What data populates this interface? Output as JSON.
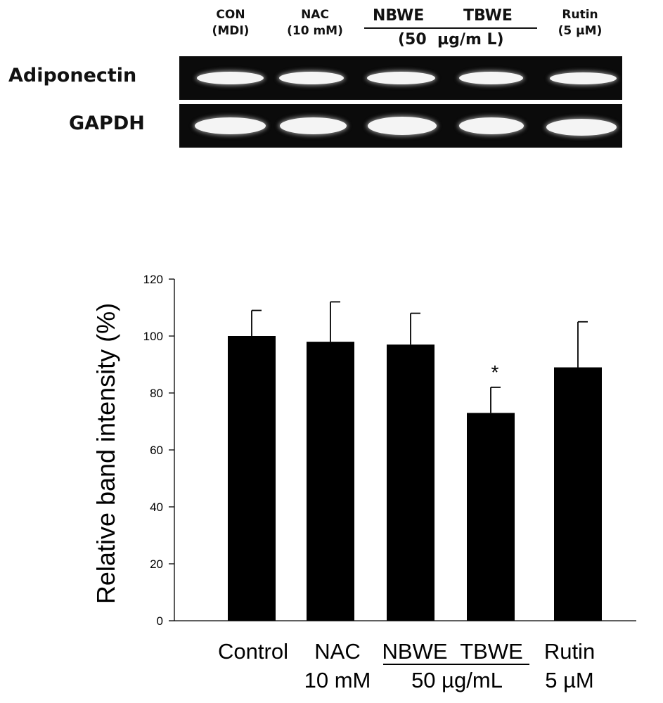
{
  "gel": {
    "lanes": [
      {
        "line1": "CON",
        "line2": "(MDI)"
      },
      {
        "line1": "NAC",
        "line2": "(10 mM)"
      },
      {
        "line1": "NBWE",
        "line2": ""
      },
      {
        "line1": "TBWE",
        "line2": ""
      },
      {
        "line1": "Rutin",
        "line2": "(5 µM)"
      }
    ],
    "group_label": "(50  µg/m L)",
    "rows": [
      "Adiponectin",
      "GAPDH"
    ]
  },
  "chart_data": {
    "type": "bar",
    "categories": [
      "Control",
      "NAC",
      "NBWE",
      "TBWE",
      "Rutin"
    ],
    "category_sublabels": [
      "",
      "10 mM",
      "",
      "",
      "5 µM"
    ],
    "group_sublabel": "50 µg/mL",
    "values": [
      100,
      98,
      97,
      73,
      89
    ],
    "errors": [
      9,
      14,
      11,
      9,
      16
    ],
    "significance": [
      "",
      "",
      "",
      "*",
      ""
    ],
    "ylabel": "Relative band intensity (%)",
    "xlabel": "",
    "ylim": [
      0,
      120
    ],
    "yticks": [
      0,
      20,
      40,
      60,
      80,
      100,
      120
    ],
    "grid": false,
    "bar_color": "#000000"
  }
}
